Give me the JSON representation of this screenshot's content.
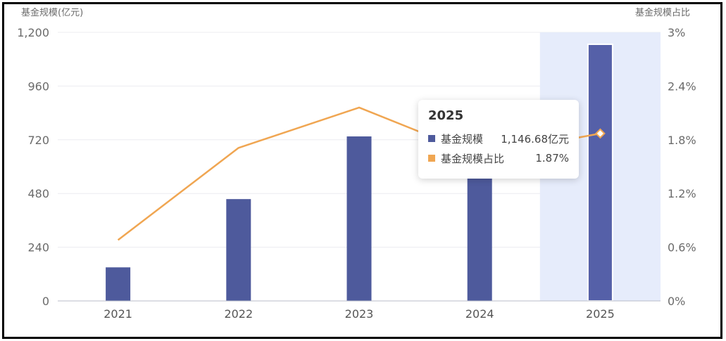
{
  "chart_data": {
    "type": "bar+line",
    "categories": [
      "2021",
      "2022",
      "2023",
      "2024",
      "2025"
    ],
    "left_axis_title": "基金规模(亿元)",
    "right_axis_title": "基金规模占比",
    "y_left": {
      "min": 0,
      "max": 1200,
      "ticks": [
        "0",
        "240",
        "480",
        "720",
        "960",
        "1,200"
      ]
    },
    "y_right": {
      "min": 0,
      "max": 3,
      "ticks": [
        "0%",
        "0.6%",
        "1.2%",
        "1.8%",
        "2.4%",
        "3%"
      ]
    },
    "series": [
      {
        "name": "基金规模",
        "type": "bar",
        "color": "#4e5a9c",
        "values": [
          150,
          455,
          735,
          865,
          1146.68
        ]
      },
      {
        "name": "基金规模占比",
        "type": "line",
        "color": "#f0a652",
        "values": [
          0.68,
          1.71,
          2.16,
          1.62,
          1.87
        ]
      }
    ],
    "highlight_index": 4,
    "highlight_color": "#e6ecfb",
    "grid": true
  },
  "tooltip": {
    "title": "2025",
    "rows": [
      {
        "name": "基金规模",
        "value": "1,146.68亿元",
        "color": "#4e5a9c"
      },
      {
        "name": "基金规模占比",
        "value": "1.87%",
        "color": "#f0a652"
      }
    ]
  }
}
